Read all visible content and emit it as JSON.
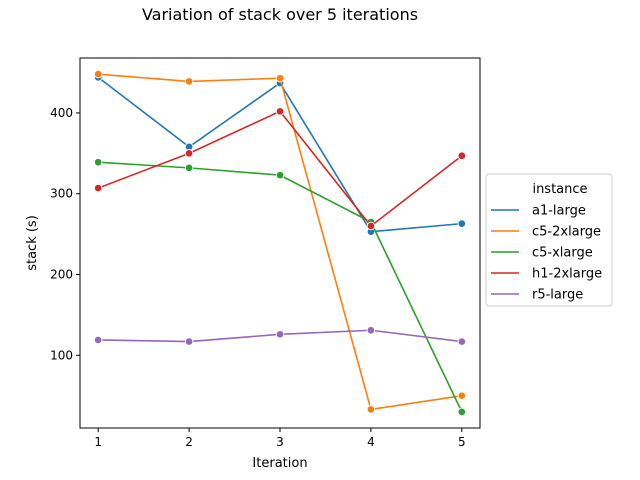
{
  "chart_data": {
    "type": "line",
    "title": "Variation of stack over 5 iterations",
    "xlabel": "Iteration",
    "ylabel": "stack (s)",
    "x": [
      1,
      2,
      3,
      4,
      5
    ],
    "xlim": [
      0.8,
      5.2
    ],
    "ylim": [
      10,
      468
    ],
    "yticks": [
      100,
      200,
      300,
      400
    ],
    "legend_title": "instance",
    "legend_placement": "center-right outside",
    "grid": false,
    "series": [
      {
        "name": "a1-large",
        "color": "#1f77b4",
        "values": [
          444,
          358,
          437,
          253,
          263
        ]
      },
      {
        "name": "c5-2xlarge",
        "color": "#ff7f0e",
        "values": [
          448,
          439,
          443,
          33,
          50
        ]
      },
      {
        "name": "c5-xlarge",
        "color": "#2ca02c",
        "values": [
          339,
          332,
          323,
          265,
          30
        ]
      },
      {
        "name": "h1-2xlarge",
        "color": "#d62728",
        "values": [
          307,
          350,
          402,
          260,
          347
        ]
      },
      {
        "name": "r5-large",
        "color": "#9467bd",
        "values": [
          119,
          117,
          126,
          131,
          117
        ]
      }
    ]
  }
}
